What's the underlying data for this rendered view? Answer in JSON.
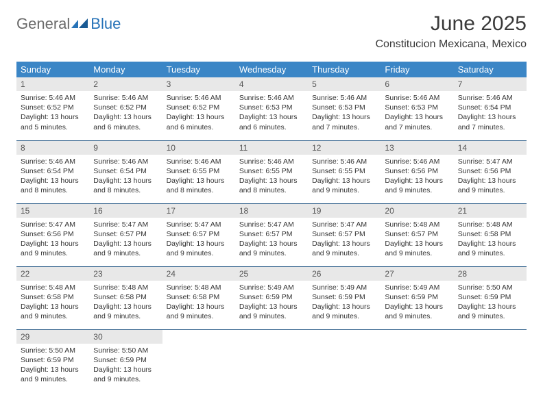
{
  "brand": {
    "word1": "General",
    "word2": "Blue"
  },
  "title": "June 2025",
  "location": "Constitucion Mexicana, Mexico",
  "colors": {
    "header_bg": "#3b86c6",
    "header_text": "#ffffff",
    "daynum_bg": "#e8e8e8",
    "week_border": "#2e5f8a",
    "logo_gray": "#6a6a6a",
    "logo_blue": "#2773b8"
  },
  "weekdays": [
    "Sunday",
    "Monday",
    "Tuesday",
    "Wednesday",
    "Thursday",
    "Friday",
    "Saturday"
  ],
  "weeks": [
    [
      {
        "n": "1",
        "sr": "Sunrise: 5:46 AM",
        "ss": "Sunset: 6:52 PM",
        "d1": "Daylight: 13 hours",
        "d2": "and 5 minutes."
      },
      {
        "n": "2",
        "sr": "Sunrise: 5:46 AM",
        "ss": "Sunset: 6:52 PM",
        "d1": "Daylight: 13 hours",
        "d2": "and 6 minutes."
      },
      {
        "n": "3",
        "sr": "Sunrise: 5:46 AM",
        "ss": "Sunset: 6:52 PM",
        "d1": "Daylight: 13 hours",
        "d2": "and 6 minutes."
      },
      {
        "n": "4",
        "sr": "Sunrise: 5:46 AM",
        "ss": "Sunset: 6:53 PM",
        "d1": "Daylight: 13 hours",
        "d2": "and 6 minutes."
      },
      {
        "n": "5",
        "sr": "Sunrise: 5:46 AM",
        "ss": "Sunset: 6:53 PM",
        "d1": "Daylight: 13 hours",
        "d2": "and 7 minutes."
      },
      {
        "n": "6",
        "sr": "Sunrise: 5:46 AM",
        "ss": "Sunset: 6:53 PM",
        "d1": "Daylight: 13 hours",
        "d2": "and 7 minutes."
      },
      {
        "n": "7",
        "sr": "Sunrise: 5:46 AM",
        "ss": "Sunset: 6:54 PM",
        "d1": "Daylight: 13 hours",
        "d2": "and 7 minutes."
      }
    ],
    [
      {
        "n": "8",
        "sr": "Sunrise: 5:46 AM",
        "ss": "Sunset: 6:54 PM",
        "d1": "Daylight: 13 hours",
        "d2": "and 8 minutes."
      },
      {
        "n": "9",
        "sr": "Sunrise: 5:46 AM",
        "ss": "Sunset: 6:54 PM",
        "d1": "Daylight: 13 hours",
        "d2": "and 8 minutes."
      },
      {
        "n": "10",
        "sr": "Sunrise: 5:46 AM",
        "ss": "Sunset: 6:55 PM",
        "d1": "Daylight: 13 hours",
        "d2": "and 8 minutes."
      },
      {
        "n": "11",
        "sr": "Sunrise: 5:46 AM",
        "ss": "Sunset: 6:55 PM",
        "d1": "Daylight: 13 hours",
        "d2": "and 8 minutes."
      },
      {
        "n": "12",
        "sr": "Sunrise: 5:46 AM",
        "ss": "Sunset: 6:55 PM",
        "d1": "Daylight: 13 hours",
        "d2": "and 9 minutes."
      },
      {
        "n": "13",
        "sr": "Sunrise: 5:46 AM",
        "ss": "Sunset: 6:56 PM",
        "d1": "Daylight: 13 hours",
        "d2": "and 9 minutes."
      },
      {
        "n": "14",
        "sr": "Sunrise: 5:47 AM",
        "ss": "Sunset: 6:56 PM",
        "d1": "Daylight: 13 hours",
        "d2": "and 9 minutes."
      }
    ],
    [
      {
        "n": "15",
        "sr": "Sunrise: 5:47 AM",
        "ss": "Sunset: 6:56 PM",
        "d1": "Daylight: 13 hours",
        "d2": "and 9 minutes."
      },
      {
        "n": "16",
        "sr": "Sunrise: 5:47 AM",
        "ss": "Sunset: 6:57 PM",
        "d1": "Daylight: 13 hours",
        "d2": "and 9 minutes."
      },
      {
        "n": "17",
        "sr": "Sunrise: 5:47 AM",
        "ss": "Sunset: 6:57 PM",
        "d1": "Daylight: 13 hours",
        "d2": "and 9 minutes."
      },
      {
        "n": "18",
        "sr": "Sunrise: 5:47 AM",
        "ss": "Sunset: 6:57 PM",
        "d1": "Daylight: 13 hours",
        "d2": "and 9 minutes."
      },
      {
        "n": "19",
        "sr": "Sunrise: 5:47 AM",
        "ss": "Sunset: 6:57 PM",
        "d1": "Daylight: 13 hours",
        "d2": "and 9 minutes."
      },
      {
        "n": "20",
        "sr": "Sunrise: 5:48 AM",
        "ss": "Sunset: 6:57 PM",
        "d1": "Daylight: 13 hours",
        "d2": "and 9 minutes."
      },
      {
        "n": "21",
        "sr": "Sunrise: 5:48 AM",
        "ss": "Sunset: 6:58 PM",
        "d1": "Daylight: 13 hours",
        "d2": "and 9 minutes."
      }
    ],
    [
      {
        "n": "22",
        "sr": "Sunrise: 5:48 AM",
        "ss": "Sunset: 6:58 PM",
        "d1": "Daylight: 13 hours",
        "d2": "and 9 minutes."
      },
      {
        "n": "23",
        "sr": "Sunrise: 5:48 AM",
        "ss": "Sunset: 6:58 PM",
        "d1": "Daylight: 13 hours",
        "d2": "and 9 minutes."
      },
      {
        "n": "24",
        "sr": "Sunrise: 5:48 AM",
        "ss": "Sunset: 6:58 PM",
        "d1": "Daylight: 13 hours",
        "d2": "and 9 minutes."
      },
      {
        "n": "25",
        "sr": "Sunrise: 5:49 AM",
        "ss": "Sunset: 6:59 PM",
        "d1": "Daylight: 13 hours",
        "d2": "and 9 minutes."
      },
      {
        "n": "26",
        "sr": "Sunrise: 5:49 AM",
        "ss": "Sunset: 6:59 PM",
        "d1": "Daylight: 13 hours",
        "d2": "and 9 minutes."
      },
      {
        "n": "27",
        "sr": "Sunrise: 5:49 AM",
        "ss": "Sunset: 6:59 PM",
        "d1": "Daylight: 13 hours",
        "d2": "and 9 minutes."
      },
      {
        "n": "28",
        "sr": "Sunrise: 5:50 AM",
        "ss": "Sunset: 6:59 PM",
        "d1": "Daylight: 13 hours",
        "d2": "and 9 minutes."
      }
    ],
    [
      {
        "n": "29",
        "sr": "Sunrise: 5:50 AM",
        "ss": "Sunset: 6:59 PM",
        "d1": "Daylight: 13 hours",
        "d2": "and 9 minutes."
      },
      {
        "n": "30",
        "sr": "Sunrise: 5:50 AM",
        "ss": "Sunset: 6:59 PM",
        "d1": "Daylight: 13 hours",
        "d2": "and 9 minutes."
      },
      {
        "empty": true
      },
      {
        "empty": true
      },
      {
        "empty": true
      },
      {
        "empty": true
      },
      {
        "empty": true
      }
    ]
  ]
}
